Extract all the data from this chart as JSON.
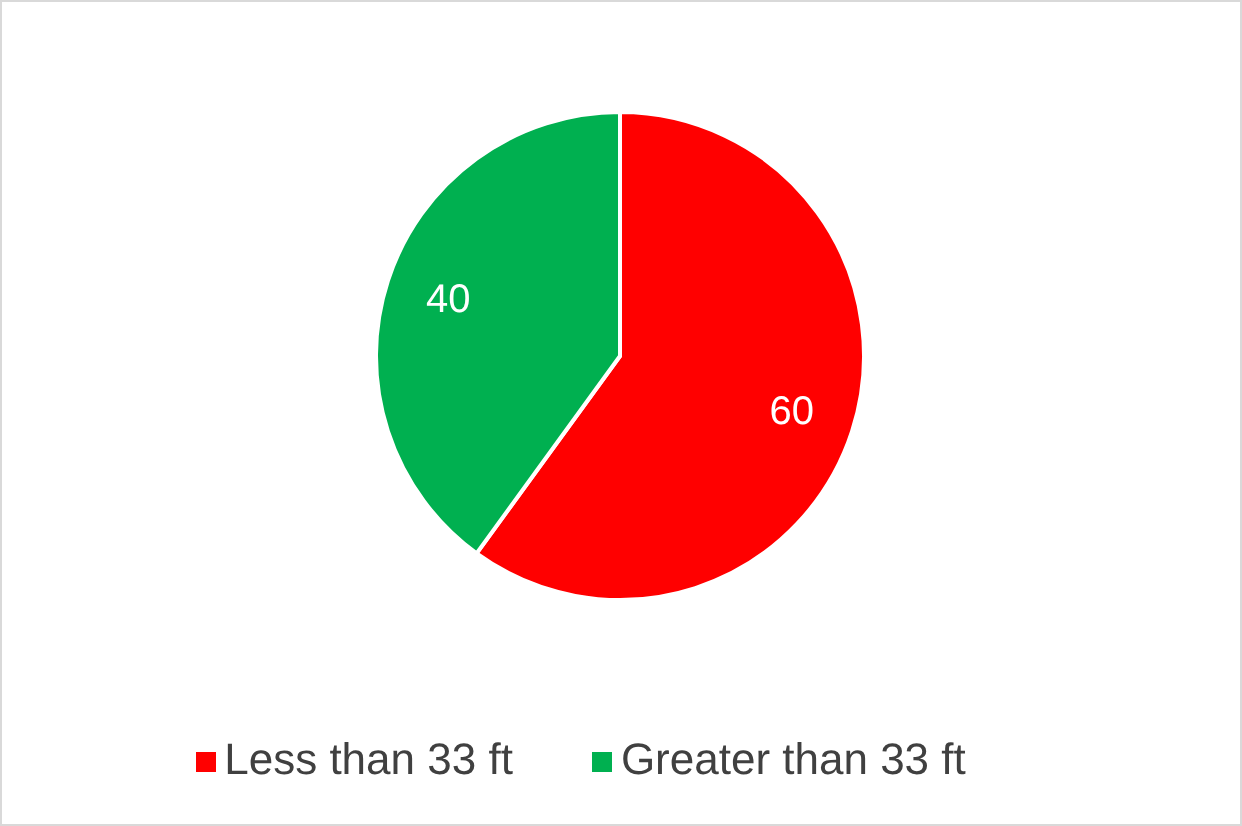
{
  "chart_data": {
    "type": "pie",
    "categories": [
      "Less than 33 ft",
      "Greater than 33 ft"
    ],
    "values": [
      60,
      40
    ],
    "colors": [
      "#ff0000",
      "#00b050"
    ],
    "data_labels": true,
    "legend": "bottom"
  }
}
